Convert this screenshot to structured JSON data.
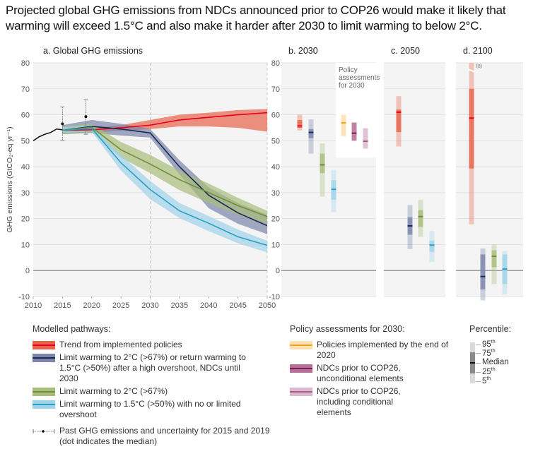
{
  "title": "Projected global GHG emissions from NDCs announced prior to COP26 would make it likely that warming will exceed 1.5°C and also make it harder after 2030 to limit warming to below 2°C.",
  "colors": {
    "red_line": "#e3001b",
    "red_band": "#e8634a",
    "navy_line": "#1b2a55",
    "navy_band": "#7b86aa",
    "green_line": "#6f8f3c",
    "green_band": "#a9bd7a",
    "blue_line": "#2a9fc5",
    "blue_band": "#9fd3ea",
    "yellow_line": "#f2a51a",
    "yellow_band": "#fde0b3",
    "purple_line": "#7a1f4e",
    "purple_band": "#b66f96",
    "pink_line": "#a05a86",
    "pink_band": "#dcb8cf",
    "panel_bg": "#f4f4f4",
    "grid": "#dddddd",
    "zero_line": "#9a9a9a"
  },
  "chart_data": [
    {
      "type": "line",
      "panel": "a",
      "title": "a. Global GHG emissions",
      "xlabel": "",
      "ylabel": "GHG emissions (GtCO₂-eq yr⁻¹)",
      "ylim": [
        -10,
        80
      ],
      "xlim": [
        2010,
        2050
      ],
      "yticks": [
        80,
        70,
        60,
        50,
        40,
        30,
        20,
        10,
        0,
        -10
      ],
      "xticks": [
        2010,
        2015,
        2020,
        2025,
        2030,
        2035,
        2040,
        2045,
        2050
      ],
      "grid": true,
      "vlines": [
        2030,
        2050
      ],
      "history": {
        "name": "Past GHG emissions",
        "x": [
          2010,
          2011,
          2012,
          2013,
          2014,
          2015
        ],
        "y": [
          50,
          51.5,
          52.5,
          53.2,
          54.5,
          54.2
        ]
      },
      "uncertainty": [
        {
          "year": 2015,
          "median": 56.5,
          "low": 50,
          "high": 63
        },
        {
          "year": 2019,
          "median": 59.3,
          "low": 52.5,
          "high": 65.8
        }
      ],
      "series": [
        {
          "name": "Trend from implemented policies",
          "key": "red",
          "x": [
            2015,
            2020,
            2025,
            2030,
            2035,
            2040,
            2045,
            2050
          ],
          "median": [
            54,
            54.2,
            55,
            56,
            58,
            59,
            60,
            60.8
          ],
          "low": [
            53,
            53.2,
            53.8,
            54.5,
            55.5,
            55.5,
            55,
            53.5
          ],
          "high": [
            55,
            55.2,
            56,
            58,
            60,
            60.8,
            61.8,
            62.2
          ]
        },
        {
          "name": "Limit warming to 2°C (>67%) or return warming to 1.5°C (>50%) after a high overshoot, NDCs until 2030",
          "key": "navy",
          "x": [
            2015,
            2020,
            2025,
            2030,
            2035,
            2040,
            2045,
            2050
          ],
          "median": [
            54,
            55.5,
            54.5,
            53,
            40,
            29,
            22.2,
            17.3
          ],
          "low": [
            52.5,
            53,
            52,
            51.2,
            37,
            24,
            18,
            14
          ],
          "high": [
            56,
            58,
            56.5,
            54.5,
            42.5,
            32,
            26,
            21.5
          ]
        },
        {
          "name": "Limit warming to 2°C (>67%)",
          "key": "green",
          "x": [
            2015,
            2020,
            2025,
            2030,
            2035,
            2040,
            2045,
            2050
          ],
          "median": [
            54,
            55.2,
            46.5,
            41,
            35,
            30,
            25,
            20.8
          ],
          "low": [
            52.5,
            53.2,
            43.5,
            37.5,
            31,
            26,
            21.5,
            18
          ],
          "high": [
            55.5,
            56.5,
            49.5,
            44.5,
            38.5,
            33.5,
            28,
            23
          ]
        },
        {
          "name": "Limit warming to 1.5°C (>50%) with no or limited overshoot",
          "key": "blue",
          "x": [
            2015,
            2020,
            2025,
            2030,
            2035,
            2040,
            2045,
            2050
          ],
          "median": [
            54,
            54.8,
            41.5,
            31.2,
            23,
            18.2,
            13,
            9.7
          ],
          "low": [
            53,
            53.5,
            38.5,
            27.5,
            20.2,
            15.2,
            10.5,
            7
          ],
          "high": [
            55.2,
            56,
            44.5,
            34.5,
            26,
            21,
            15.8,
            11.5
          ]
        }
      ]
    },
    {
      "type": "box",
      "panel": "b",
      "title": "b. 2030",
      "ylim": [
        -10,
        80
      ],
      "yticks": [
        80,
        70,
        60,
        50,
        40,
        30,
        20,
        10,
        0,
        -10
      ],
      "inset_label": "Policy assessments for 2030",
      "boxes": [
        {
          "name": "Trend from implemented policies",
          "key": "red",
          "p5": 54,
          "p25": 55,
          "median": 55.7,
          "p75": 58,
          "p95": 60
        },
        {
          "name": "Limit 2°C or 1.5°C high overshoot, NDCs until 2030",
          "key": "navy",
          "p5": 45,
          "p25": 51,
          "median": 53.2,
          "p75": 54.5,
          "p95": 58.2
        },
        {
          "name": "Limit warming to 2°C (>67%)",
          "key": "green",
          "p5": 28.5,
          "p25": 37.5,
          "median": 40.7,
          "p75": 45,
          "p95": 49
        },
        {
          "name": "Limit warming to 1.5°C (>50%)",
          "key": "blue",
          "p5": 22.5,
          "p25": 27.3,
          "median": 31.3,
          "p75": 34.8,
          "p95": 38.8
        },
        {
          "name": "Policies implemented by the end of 2020",
          "key": "yellow",
          "p5": 51.8,
          "p25": 51.8,
          "median": 56.9,
          "p75": 60,
          "p95": 60
        },
        {
          "name": "NDCs prior to COP26, unconditional elements",
          "key": "purple",
          "p5": 50,
          "p25": 50,
          "median": 52.9,
          "p75": 57,
          "p95": 57
        },
        {
          "name": "NDCs prior to COP26, including conditional elements",
          "key": "pink",
          "p5": 47,
          "p25": 47,
          "median": 49.8,
          "p75": 54.8,
          "p95": 54.8
        }
      ]
    },
    {
      "type": "box",
      "panel": "c",
      "title": "c. 2050",
      "ylim": [
        -10,
        80
      ],
      "boxes": [
        {
          "name": "Trend from implemented policies",
          "key": "red",
          "p5": 47.8,
          "p25": 53.3,
          "median": 61,
          "p75": 62,
          "p95": 67.2
        },
        {
          "name": "Limit 2°C or 1.5°C high overshoot",
          "key": "navy",
          "p5": 8.3,
          "p25": 13.8,
          "median": 17.2,
          "p75": 20.5,
          "p95": 25.2
        },
        {
          "name": "Limit warming to 2°C (>67%)",
          "key": "green",
          "p5": 13,
          "p25": 16.8,
          "median": 20.8,
          "p75": 23.3,
          "p95": 27.2
        },
        {
          "name": "Limit warming to 1.5°C (>50%)",
          "key": "blue",
          "p5": 3.3,
          "p25": 7.2,
          "median": 9.8,
          "p75": 11.5,
          "p95": 15.2
        }
      ]
    },
    {
      "type": "box",
      "panel": "d",
      "title": "d. 2100",
      "ylim": [
        -10,
        80
      ],
      "break_label": "88",
      "boxes": [
        {
          "name": "Trend from implemented policies",
          "key": "red",
          "p5": 17.8,
          "p25": 39.3,
          "median": 58.7,
          "p75": 70,
          "p95": 88
        },
        {
          "name": "Limit 2°C or 1.5°C high overshoot",
          "key": "navy",
          "p5": -11.5,
          "p25": -7.3,
          "median": -2.3,
          "p75": 6.2,
          "p95": 8.5
        },
        {
          "name": "Limit warming to 2°C (>67%)",
          "key": "green",
          "p5": -5.2,
          "p25": 1.3,
          "median": 5.5,
          "p75": 7.8,
          "p95": 10
        },
        {
          "name": "Limit warming to 1.5°C (>50%)",
          "key": "blue",
          "p5": -9.2,
          "p25": -5.2,
          "median": 0.6,
          "p75": 6.2,
          "p95": 7.5
        }
      ]
    }
  ],
  "legend": {
    "modelled_header": "Modelled pathways:",
    "modelled": [
      {
        "key": "red",
        "label": "Trend from implemented policies"
      },
      {
        "key": "navy",
        "label": "Limit warming to 2°C (>67%) or return warming to 1.5°C (>50%) after a high overshoot, NDCs until 2030"
      },
      {
        "key": "green",
        "label": "Limit warming to 2°C (>67%)"
      },
      {
        "key": "blue",
        "label": "Limit warming to 1.5°C (>50%) with no or limited overshoot"
      }
    ],
    "past_label": "Past GHG emissions and uncertainty for 2015 and 2019 (dot indicates the median)",
    "policy_header": "Policy assessments for 2030:",
    "policy": [
      {
        "key": "yellow",
        "label": "Policies implemented by the end of 2020"
      },
      {
        "key": "purple",
        "label": "NDCs prior to COP26, unconditional elements"
      },
      {
        "key": "pink",
        "label": "NDCs prior to COP26, including conditional elements"
      }
    ],
    "percentile_header": "Percentile:",
    "percentile_labels": {
      "p95": "95",
      "p75": "75",
      "median": "Median",
      "p25": "25",
      "p5": "5",
      "suffix": "th"
    }
  }
}
